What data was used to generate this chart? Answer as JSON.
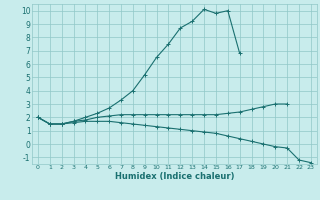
{
  "xlabel": "Humidex (Indice chaleur)",
  "xlim": [
    -0.5,
    23.5
  ],
  "ylim": [
    -1.5,
    10.5
  ],
  "yticks": [
    -1,
    0,
    1,
    2,
    3,
    4,
    5,
    6,
    7,
    8,
    9,
    10
  ],
  "xticks": [
    0,
    1,
    2,
    3,
    4,
    5,
    6,
    7,
    8,
    9,
    10,
    11,
    12,
    13,
    14,
    15,
    16,
    17,
    18,
    19,
    20,
    21,
    22,
    23
  ],
  "bg_color": "#c8ecec",
  "grid_color": "#90c8c8",
  "line_color": "#1a7070",
  "series": [
    {
      "x": [
        0,
        1,
        2,
        3,
        4,
        5,
        6,
        7,
        8,
        9,
        10,
        11,
        12,
        13,
        14,
        15,
        16,
        17,
        18,
        19,
        20,
        21
      ],
      "y": [
        2.0,
        1.5,
        1.5,
        1.7,
        1.8,
        2.0,
        2.1,
        2.2,
        2.2,
        2.2,
        2.2,
        2.2,
        2.2,
        2.2,
        2.2,
        2.2,
        2.3,
        2.4,
        2.6,
        2.8,
        3.0,
        3.0
      ]
    },
    {
      "x": [
        0,
        1,
        2,
        3,
        4,
        5,
        6,
        7,
        8,
        9,
        10,
        11,
        12,
        13,
        14,
        15,
        16,
        17
      ],
      "y": [
        2.0,
        1.5,
        1.5,
        1.7,
        2.0,
        2.3,
        2.7,
        3.3,
        4.0,
        5.2,
        6.5,
        7.5,
        8.7,
        9.2,
        10.1,
        9.8,
        10.0,
        6.8
      ]
    },
    {
      "x": [
        0,
        1,
        2,
        3,
        4,
        5,
        6,
        7,
        8,
        9,
        10,
        11,
        12,
        13,
        14,
        15,
        16,
        17,
        18,
        19,
        20,
        21,
        22,
        23
      ],
      "y": [
        2.0,
        1.5,
        1.5,
        1.6,
        1.7,
        1.7,
        1.7,
        1.6,
        1.5,
        1.4,
        1.3,
        1.2,
        1.1,
        1.0,
        0.9,
        0.8,
        0.6,
        0.4,
        0.2,
        0.0,
        -0.2,
        -0.3,
        -1.2,
        -1.4
      ]
    }
  ]
}
